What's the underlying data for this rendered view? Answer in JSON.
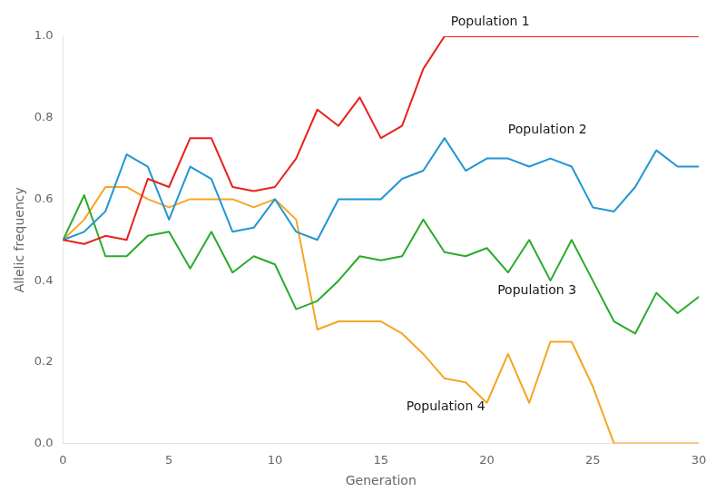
{
  "chart_data": {
    "type": "line",
    "xlabel": "Generation",
    "ylabel": "Allelic frequency",
    "xlim": [
      0,
      30
    ],
    "ylim": [
      0.0,
      1.0
    ],
    "xticks": [
      0,
      5,
      10,
      15,
      20,
      25,
      30
    ],
    "yticks": [
      {
        "value": 0.0,
        "label": "0.0"
      },
      0.2,
      0.4,
      0.6,
      0.8,
      {
        "value": 1.0,
        "label": "1.0"
      }
    ],
    "grid": false,
    "x": [
      0,
      1,
      2,
      3,
      4,
      5,
      6,
      7,
      8,
      9,
      10,
      11,
      12,
      13,
      14,
      15,
      16,
      17,
      18,
      19,
      20,
      21,
      22,
      23,
      24,
      25,
      26,
      27,
      28,
      29,
      30
    ],
    "series": [
      {
        "color": "#e8221b",
        "values": [
          0.5,
          0.49,
          0.51,
          0.5,
          0.65,
          0.63,
          0.75,
          0.75,
          0.63,
          0.62,
          0.63,
          0.7,
          0.82,
          0.78,
          0.85,
          0.75,
          0.78,
          0.92,
          1.0,
          1.0,
          1.0,
          1.0,
          1.0,
          1.0,
          1.0,
          1.0,
          1.0,
          1.0,
          1.0,
          1.0,
          1.0
        ]
      },
      {
        "color": "#2196d4",
        "values": [
          0.5,
          0.52,
          0.57,
          0.71,
          0.68,
          0.55,
          0.68,
          0.65,
          0.52,
          0.53,
          0.6,
          0.52,
          0.5,
          0.6,
          0.6,
          0.6,
          0.65,
          0.67,
          0.75,
          0.67,
          0.7,
          0.7,
          0.68,
          0.7,
          0.68,
          0.58,
          0.57,
          0.63,
          0.72,
          0.68,
          0.68
        ]
      },
      {
        "color": "#2aab2a",
        "values": [
          0.5,
          0.61,
          0.46,
          0.46,
          0.51,
          0.52,
          0.43,
          0.52,
          0.42,
          0.46,
          0.44,
          0.33,
          0.35,
          0.4,
          0.46,
          0.45,
          0.46,
          0.55,
          0.47,
          0.46,
          0.48,
          0.42,
          0.5,
          0.4,
          0.5,
          0.4,
          0.3,
          0.27,
          0.37,
          0.32,
          0.36
        ]
      },
      {
        "color": "#f5a623",
        "values": [
          0.5,
          0.55,
          0.63,
          0.63,
          0.6,
          0.58,
          0.6,
          0.6,
          0.6,
          0.58,
          0.6,
          0.55,
          0.28,
          0.3,
          0.3,
          0.3,
          0.27,
          0.22,
          0.16,
          0.15,
          0.1,
          0.22,
          0.1,
          0.25,
          0.25,
          0.14,
          0.0,
          0.0,
          0.0,
          0.0,
          0.0
        ]
      }
    ],
    "annotations": [
      {
        "text": "Population 1",
        "x": 18.3,
        "y": 1.02
      },
      {
        "text": "Population 2",
        "x": 21.0,
        "y": 0.755
      },
      {
        "text": "Population 3",
        "x": 20.5,
        "y": 0.36
      },
      {
        "text": "Population 4",
        "x": 16.2,
        "y": 0.075
      }
    ]
  }
}
